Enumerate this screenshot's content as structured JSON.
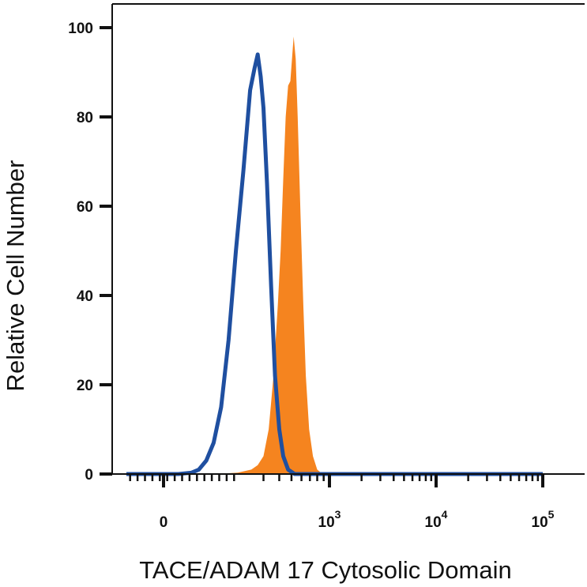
{
  "chart_data": {
    "type": "area",
    "xlabel": "TACE/ADAM 17 Cytosolic Domain",
    "ylabel": "Relative Cell Number",
    "x_scale": "biexponential",
    "xlim": [
      -100,
      100000
    ],
    "ylim": [
      0,
      100
    ],
    "yticks": [
      {
        "value": 0,
        "label": "0"
      },
      {
        "value": 20,
        "label": "20"
      },
      {
        "value": 40,
        "label": "40"
      },
      {
        "value": 60,
        "label": "60"
      },
      {
        "value": 80,
        "label": "80"
      },
      {
        "value": 100,
        "label": "100"
      }
    ],
    "xticks": [
      {
        "value": 0,
        "base": "0",
        "exp": ""
      },
      {
        "value": 1000,
        "base": "10",
        "exp": "3"
      },
      {
        "value": 10000,
        "base": "10",
        "exp": "4"
      },
      {
        "value": 100000,
        "base": "10",
        "exp": "5"
      }
    ],
    "grid": false,
    "series": [
      {
        "style": "filled",
        "color": "#F5841F",
        "points": [
          [
            60,
            0
          ],
          [
            140,
            0
          ],
          [
            200,
            0.3
          ],
          [
            240,
            1
          ],
          [
            270,
            2
          ],
          [
            300,
            4
          ],
          [
            330,
            10
          ],
          [
            360,
            22
          ],
          [
            390,
            38
          ],
          [
            410,
            50
          ],
          [
            430,
            66
          ],
          [
            450,
            80
          ],
          [
            470,
            87
          ],
          [
            490,
            88
          ],
          [
            505,
            93
          ],
          [
            520,
            98
          ],
          [
            540,
            93
          ],
          [
            560,
            80
          ],
          [
            590,
            58
          ],
          [
            620,
            38
          ],
          [
            650,
            22
          ],
          [
            690,
            10
          ],
          [
            740,
            4
          ],
          [
            800,
            1
          ],
          [
            880,
            0
          ],
          [
            1000,
            0
          ]
        ]
      },
      {
        "style": "line",
        "color": "#1F4FA0",
        "points": [
          [
            -100,
            0
          ],
          [
            40,
            0
          ],
          [
            75,
            0.3
          ],
          [
            95,
            1
          ],
          [
            115,
            3
          ],
          [
            135,
            7
          ],
          [
            155,
            15
          ],
          [
            175,
            30
          ],
          [
            195,
            50
          ],
          [
            215,
            68
          ],
          [
            235,
            86
          ],
          [
            255,
            91
          ],
          [
            270,
            94
          ],
          [
            285,
            89
          ],
          [
            300,
            82
          ],
          [
            320,
            65
          ],
          [
            345,
            42
          ],
          [
            370,
            22
          ],
          [
            400,
            10
          ],
          [
            430,
            4
          ],
          [
            470,
            1
          ],
          [
            530,
            0
          ],
          [
            100000,
            0
          ]
        ]
      }
    ]
  }
}
